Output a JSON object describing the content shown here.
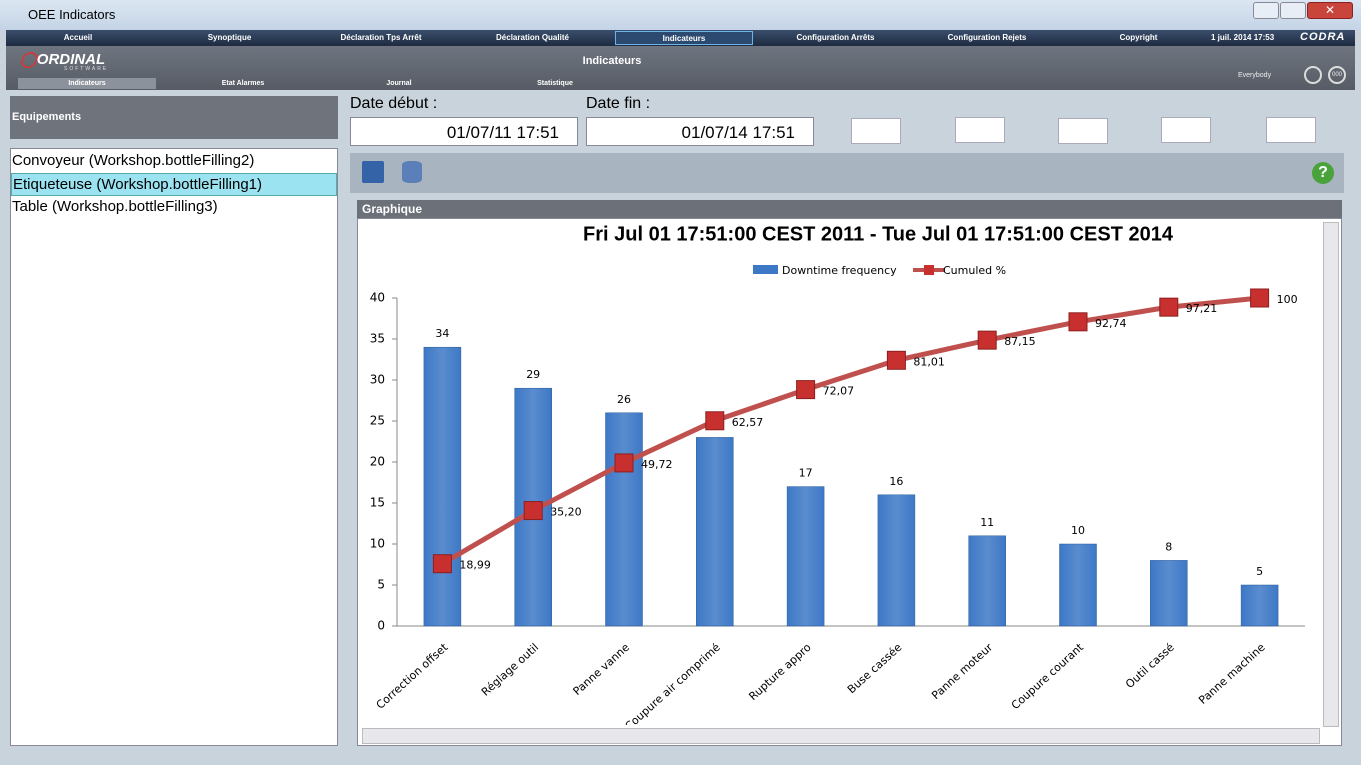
{
  "window": {
    "title": "OEE Indicators"
  },
  "menu": [
    "Accueil",
    "Synoptique",
    "Déclaration Tps Arrêt",
    "Déclaration Qualité",
    "Indicateurs",
    "Configuration Arrêts",
    "Configuration Rejets",
    "Copyright"
  ],
  "menu_selected": 4,
  "datetime": "1 juil. 2014 17:53",
  "brand": "CODRA",
  "logo": {
    "name": "ORDINAL",
    "tagline": "SOFTWARE"
  },
  "page_title": "Indicateurs",
  "tabs": [
    "Indicateurs",
    "Etat Alarmes",
    "Journal",
    "Statistique"
  ],
  "tab_selected": 0,
  "user": "Everybody",
  "user_button": "000",
  "equipment": {
    "header": "Equipements",
    "items": [
      "Convoyeur (Workshop.bottleFilling2)",
      "Etiqueteuse (Workshop.bottleFilling1)",
      "Table (Workshop.bottleFilling3)"
    ],
    "selected": 1
  },
  "date_start": {
    "label": "Date début :",
    "value": "01/07/11 17:51"
  },
  "date_end": {
    "label": "Date fin :",
    "value": "01/07/14 17:51"
  },
  "panel_title": "Graphique",
  "chart_data": {
    "type": "bar",
    "title": "Fri Jul 01 17:51:00 CEST 2011 - Tue Jul 01 17:51:00 CEST 2014",
    "categories": [
      "Correction offset",
      "Réglage outil",
      "Panne vanne",
      "Coupure air comprimé",
      "Rupture appro",
      "Buse cassée",
      "Panne moteur",
      "Coupure courant",
      "Outil cassé",
      "Panne machine"
    ],
    "series": [
      {
        "name": "Downtime frequency",
        "type": "bar",
        "color": "#3d78c6",
        "values": [
          34,
          29,
          26,
          23,
          17,
          16,
          11,
          10,
          8,
          5
        ]
      },
      {
        "name": "Cumuled %",
        "type": "line",
        "axis": "y2",
        "color": "#c0504d",
        "values": [
          18.99,
          35.2,
          49.72,
          62.57,
          72.07,
          81.01,
          87.15,
          92.74,
          97.21,
          100
        ],
        "value_labels": [
          "18,99",
          "35,20",
          "49,72",
          "62,57",
          "72,07",
          "81,01",
          "87,15",
          "92,74",
          "97,21",
          "100"
        ]
      }
    ],
    "ylim": [
      0,
      40
    ],
    "yticks": [
      0,
      5,
      10,
      15,
      20,
      25,
      30,
      35,
      40
    ],
    "y2lim": [
      0,
      100
    ],
    "legend": "top"
  }
}
